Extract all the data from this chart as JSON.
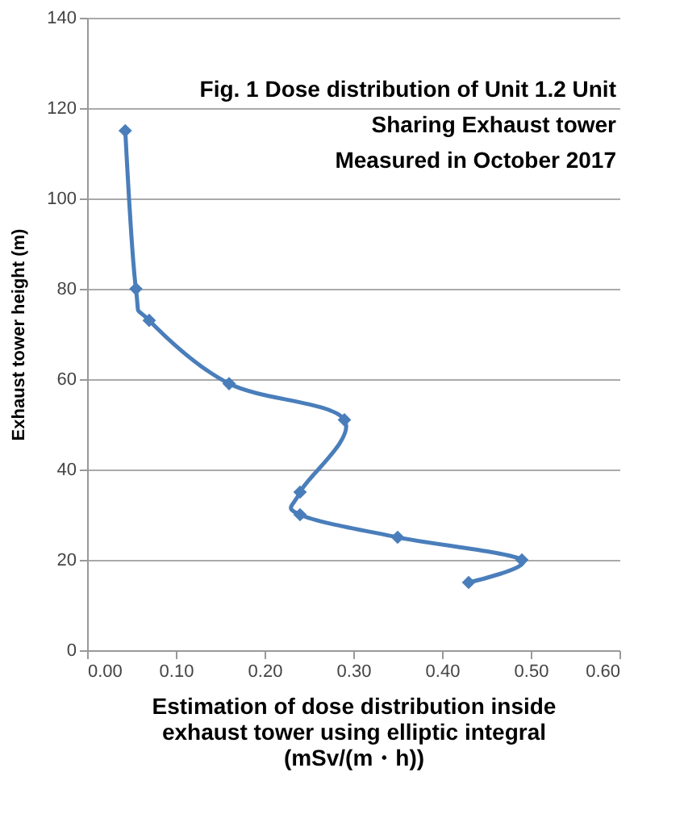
{
  "chart_data": {
    "type": "line",
    "title": [
      "Fig. 1 Dose distribution of Unit 1.2 Unit",
      "Sharing Exhaust tower",
      "Measured in October 2017"
    ],
    "xlabel": [
      "Estimation of dose distribution inside",
      "exhaust tower using elliptic integral",
      "(mSv/(m・h))"
    ],
    "ylabel": "Exhaust tower height (m)",
    "series": [
      {
        "color": "#4a7ebb",
        "x": [
          0.043,
          0.055,
          0.07,
          0.16,
          0.29,
          0.24,
          0.24,
          0.35,
          0.49,
          0.43
        ],
        "values": [
          115,
          80,
          73,
          59,
          51,
          35,
          30,
          25,
          20,
          15
        ]
      }
    ],
    "xlim": [
      0,
      0.6
    ],
    "xticks": [
      {
        "value": 0,
        "label": "0.00"
      },
      {
        "value": 0.1,
        "label": "0.10"
      },
      {
        "value": 0.2,
        "label": "0.20"
      },
      {
        "value": 0.3,
        "label": "0.30"
      },
      {
        "value": 0.4,
        "label": "0.40"
      },
      {
        "value": 0.5,
        "label": "0.50"
      },
      {
        "value": 0.6,
        "label": "0.60"
      }
    ],
    "ylim": [
      0,
      140
    ],
    "yticks": [
      0,
      20,
      40,
      60,
      80,
      100,
      120,
      140
    ],
    "grid": "y",
    "marker": "diamond",
    "line_style": "solid"
  }
}
